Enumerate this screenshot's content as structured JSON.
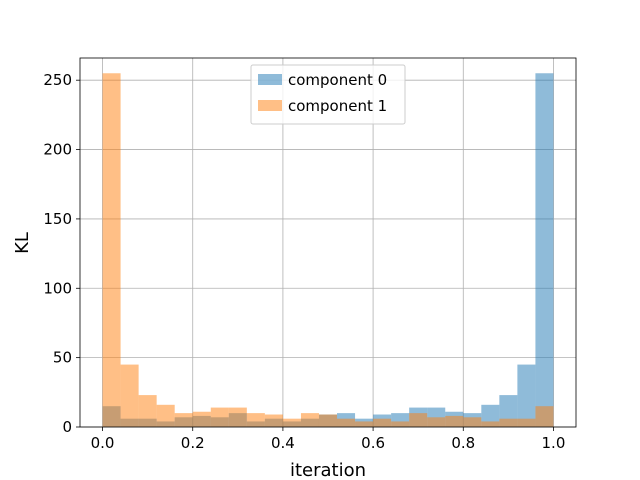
{
  "chart_data": {
    "type": "bar",
    "subtype": "overlapping-histogram",
    "title": "",
    "xlabel": "iteration",
    "ylabel": "KL",
    "xlim": [
      -0.05,
      1.05
    ],
    "ylim": [
      0,
      266
    ],
    "xticks": [
      "0.0",
      "0.2",
      "0.4",
      "0.6",
      "0.8",
      "1.0"
    ],
    "yticks": [
      "0",
      "50",
      "100",
      "150",
      "200",
      "250"
    ],
    "grid": true,
    "legend": "top-center",
    "bins": {
      "edges": [
        0.0,
        0.04,
        0.08,
        0.12,
        0.16,
        0.2,
        0.24,
        0.28,
        0.32,
        0.36,
        0.4,
        0.44,
        0.48,
        0.52,
        0.56,
        0.6,
        0.64,
        0.68,
        0.72,
        0.76,
        0.8,
        0.84,
        0.88,
        0.92,
        0.96,
        1.0
      ]
    },
    "series": [
      {
        "name": "component 0",
        "color": "#1f77b4",
        "alpha": 0.5,
        "values": [
          15,
          6,
          6,
          4,
          7,
          8,
          7,
          10,
          4,
          6,
          4,
          6,
          9,
          10,
          6,
          9,
          10,
          14,
          14,
          11,
          10,
          16,
          23,
          45,
          255
        ]
      },
      {
        "name": "component 1",
        "color": "#ff7f0e",
        "alpha": 0.5,
        "values": [
          255,
          45,
          23,
          16,
          10,
          11,
          14,
          14,
          10,
          9,
          6,
          10,
          9,
          6,
          4,
          6,
          4,
          10,
          7,
          8,
          7,
          4,
          6,
          6,
          15
        ]
      }
    ]
  }
}
